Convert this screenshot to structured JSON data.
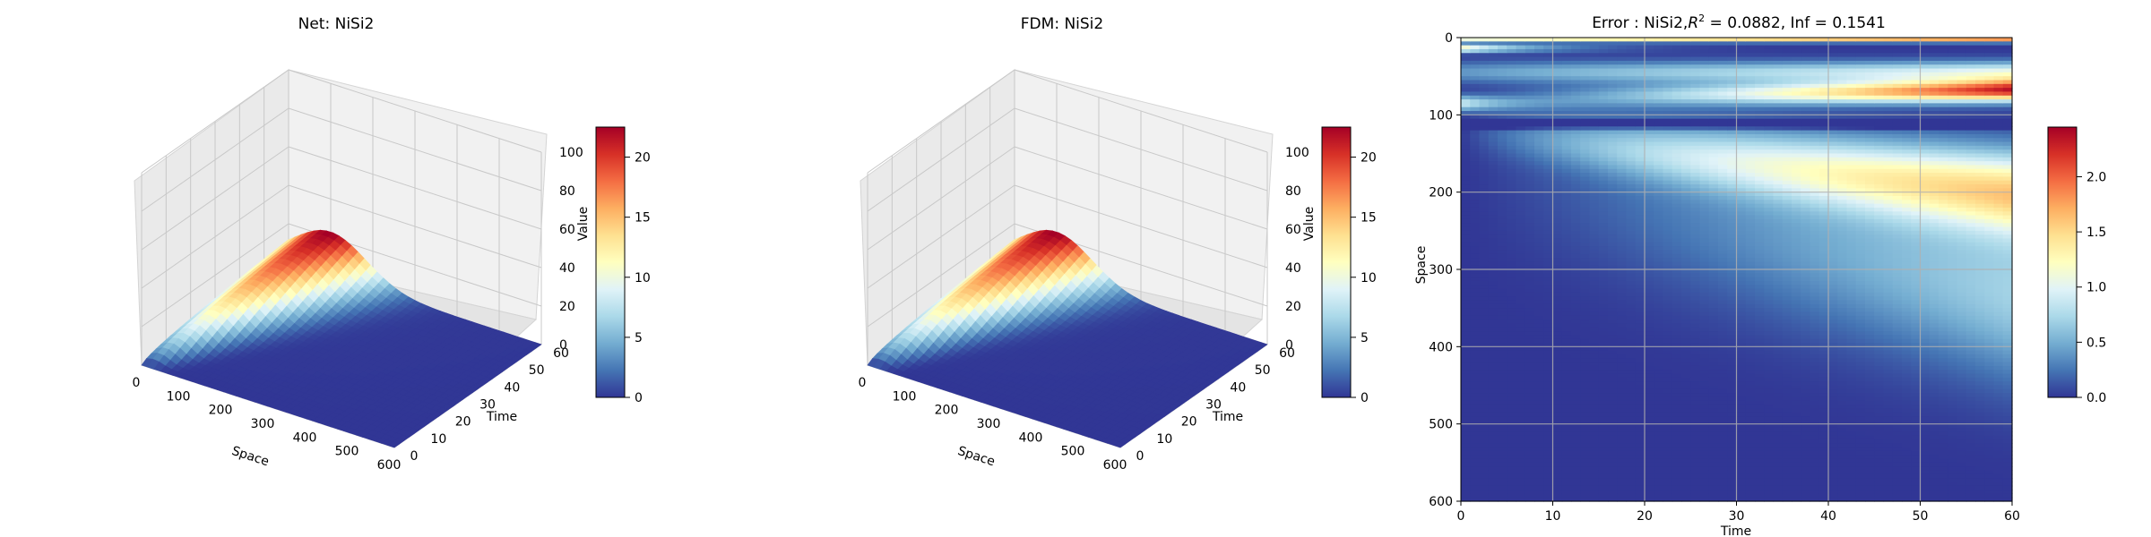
{
  "chart_data": [
    {
      "type": "surface",
      "title": "Net: NiSi2",
      "xlabel": "Space",
      "ylabel": "Time",
      "zlabel": "Value",
      "xlim": [
        0,
        600
      ],
      "ylim": [
        0,
        60
      ],
      "zlim": [
        0,
        100
      ],
      "x_ticks": [
        "0",
        "100",
        "200",
        "300",
        "400",
        "500",
        "600"
      ],
      "y_ticks": [
        "0",
        "10",
        "20",
        "30",
        "40",
        "50",
        "60"
      ],
      "z_ticks": [
        "0",
        "20",
        "40",
        "60",
        "80",
        "100"
      ],
      "colorbar": {
        "range": [
          0,
          22.5
        ],
        "ticks": [
          "0",
          "5",
          "10",
          "15",
          "20"
        ]
      },
      "surface": {
        "peak_value": 22.5,
        "peak_space": 100,
        "peak_time": 60,
        "colormap": "RdYlBu_r"
      }
    },
    {
      "type": "surface",
      "title": "FDM: NiSi2",
      "xlabel": "Space",
      "ylabel": "Time",
      "zlabel": "Value",
      "xlim": [
        0,
        600
      ],
      "ylim": [
        0,
        60
      ],
      "zlim": [
        0,
        100
      ],
      "x_ticks": [
        "0",
        "100",
        "200",
        "300",
        "400",
        "500",
        "600"
      ],
      "y_ticks": [
        "0",
        "10",
        "20",
        "30",
        "40",
        "50",
        "60"
      ],
      "z_ticks": [
        "0",
        "20",
        "40",
        "60",
        "80",
        "100"
      ],
      "colorbar": {
        "range": [
          0,
          22.5
        ],
        "ticks": [
          "0",
          "5",
          "10",
          "15",
          "20"
        ]
      },
      "surface": {
        "peak_value": 22.5,
        "peak_space": 100,
        "peak_time": 60,
        "colormap": "RdYlBu_r"
      }
    },
    {
      "type": "heatmap",
      "title_prefix": "Error : NiSi2,",
      "title_r": "R",
      "title_sup": "2",
      "title_suffix": " = 0.0882, Inf = 0.1541",
      "xlabel": "Time",
      "ylabel": "Space",
      "xlim": [
        0,
        60
      ],
      "ylim": [
        600,
        0
      ],
      "x_ticks": [
        "0",
        "10",
        "20",
        "30",
        "40",
        "50",
        "60"
      ],
      "y_ticks": [
        "0",
        "100",
        "200",
        "300",
        "400",
        "500",
        "600"
      ],
      "grid": true,
      "colorbar": {
        "range": [
          0,
          2.45
        ],
        "ticks": [
          "0.0",
          "0.5",
          "1.0",
          "1.5",
          "2.0"
        ]
      },
      "colormap": "RdYlBu_r"
    }
  ]
}
